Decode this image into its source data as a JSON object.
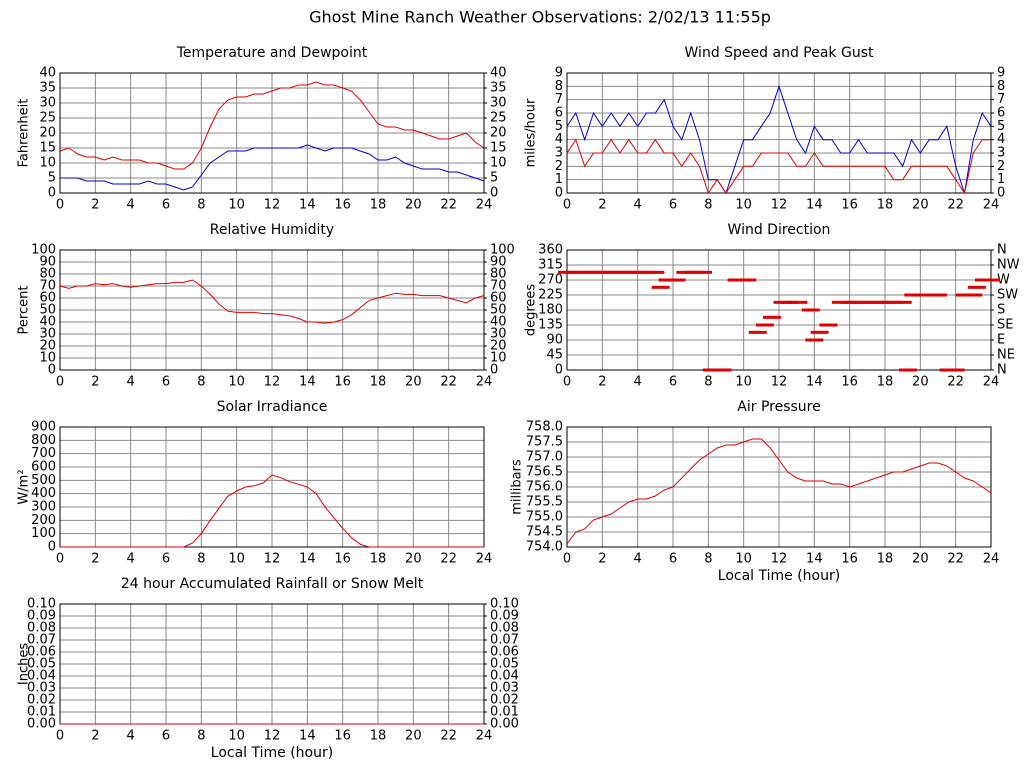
{
  "title": "Ghost Mine Ranch Weather Observations: 2/02/13 11:55p",
  "chart_data": [
    {
      "type": "line",
      "title": "Temperature and Dewpoint",
      "ylabel": "Fahrenheit",
      "grid": true,
      "x": [
        0,
        0.5,
        1,
        1.5,
        2,
        2.5,
        3,
        3.5,
        4,
        4.5,
        5,
        5.5,
        6,
        6.5,
        7,
        7.5,
        8,
        8.5,
        9,
        9.5,
        10,
        10.5,
        11,
        11.5,
        12,
        12.5,
        13,
        13.5,
        14,
        14.5,
        15,
        15.5,
        16,
        16.5,
        17,
        17.5,
        18,
        18.5,
        19,
        19.5,
        20,
        20.5,
        21,
        21.5,
        22,
        22.5,
        23,
        23.5,
        24
      ],
      "series": [
        {
          "color": "#e00000",
          "values": [
            14,
            15,
            13,
            12,
            12,
            11,
            12,
            11,
            11,
            11,
            10,
            10,
            9,
            8,
            8,
            10,
            15,
            22,
            28,
            31,
            32,
            32,
            33,
            33,
            34,
            35,
            35,
            36,
            36,
            37,
            36,
            36,
            35,
            34,
            31,
            27,
            23,
            22,
            22,
            21,
            21,
            20,
            19,
            18,
            18,
            19,
            20,
            17,
            15
          ]
        },
        {
          "color": "#0000d0",
          "values": [
            5,
            5,
            5,
            4,
            4,
            4,
            3,
            3,
            3,
            3,
            4,
            3,
            3,
            2,
            1,
            2,
            6,
            10,
            12,
            14,
            14,
            14,
            15,
            15,
            15,
            15,
            15,
            15,
            16,
            15,
            14,
            15,
            15,
            15,
            14,
            13,
            11,
            11,
            12,
            10,
            9,
            8,
            8,
            8,
            7,
            7,
            6,
            5,
            4
          ]
        }
      ],
      "xlim": [
        0,
        24
      ],
      "xticks": [
        0,
        2,
        4,
        6,
        8,
        10,
        12,
        14,
        16,
        18,
        20,
        22,
        24
      ],
      "ylim": [
        0,
        40
      ],
      "yticks": [
        0,
        5,
        10,
        15,
        20,
        25,
        30,
        35,
        40
      ],
      "y2lim": [
        0,
        40
      ],
      "y2ticks": [
        0,
        5,
        10,
        15,
        20,
        25,
        30,
        35,
        40
      ]
    },
    {
      "type": "line",
      "title": "Wind Speed and Peak Gust",
      "ylabel": "miles/hour",
      "grid": true,
      "x": [
        0,
        0.5,
        1,
        1.5,
        2,
        2.5,
        3,
        3.5,
        4,
        4.5,
        5,
        5.5,
        6,
        6.5,
        7,
        7.5,
        8,
        8.5,
        9,
        9.5,
        10,
        10.5,
        11,
        11.5,
        12,
        12.5,
        13,
        13.5,
        14,
        14.5,
        15,
        15.5,
        16,
        16.5,
        17,
        17.5,
        18,
        18.5,
        19,
        19.5,
        20,
        20.5,
        21,
        21.5,
        22,
        22.5,
        23,
        23.5,
        24
      ],
      "series": [
        {
          "color": "#0000d0",
          "values": [
            5,
            6,
            4,
            6,
            5,
            6,
            5,
            6,
            5,
            6,
            6,
            7,
            5,
            4,
            6,
            4,
            1,
            1,
            0,
            2,
            4,
            4,
            5,
            6,
            8,
            6,
            4,
            3,
            5,
            4,
            4,
            3,
            3,
            4,
            3,
            3,
            3,
            3,
            2,
            4,
            3,
            4,
            4,
            5,
            2,
            0,
            4,
            6,
            5
          ]
        },
        {
          "color": "#e00000",
          "values": [
            3,
            4,
            2,
            3,
            3,
            4,
            3,
            4,
            3,
            3,
            4,
            3,
            3,
            2,
            3,
            2,
            0,
            1,
            0,
            1,
            2,
            2,
            3,
            3,
            3,
            3,
            2,
            2,
            3,
            2,
            2,
            2,
            2,
            2,
            2,
            2,
            2,
            1,
            1,
            2,
            2,
            2,
            2,
            2,
            1,
            0,
            3,
            4,
            4
          ]
        }
      ],
      "xlim": [
        0,
        24
      ],
      "xticks": [
        0,
        2,
        4,
        6,
        8,
        10,
        12,
        14,
        16,
        18,
        20,
        22,
        24
      ],
      "ylim": [
        0,
        9
      ],
      "yticks": [
        0,
        1,
        2,
        3,
        4,
        5,
        6,
        7,
        8,
        9
      ],
      "y2lim": [
        0,
        9
      ],
      "y2ticks": [
        0,
        1,
        2,
        3,
        4,
        5,
        6,
        7,
        8,
        9
      ]
    },
    {
      "type": "line",
      "title": "Relative Humidity",
      "ylabel": "Percent",
      "grid": true,
      "x": [
        0,
        0.5,
        1,
        1.5,
        2,
        2.5,
        3,
        3.5,
        4,
        4.5,
        5,
        5.5,
        6,
        6.5,
        7,
        7.5,
        8,
        8.5,
        9,
        9.5,
        10,
        10.5,
        11,
        11.5,
        12,
        12.5,
        13,
        13.5,
        14,
        14.5,
        15,
        15.5,
        16,
        16.5,
        17,
        17.5,
        18,
        18.5,
        19,
        19.5,
        20,
        20.5,
        21,
        21.5,
        22,
        22.5,
        23,
        23.5,
        24
      ],
      "series": [
        {
          "color": "#e00000",
          "values": [
            70,
            68,
            70,
            70,
            72,
            71,
            72,
            70,
            69,
            70,
            71,
            72,
            72,
            73,
            73,
            75,
            70,
            63,
            55,
            49,
            48,
            48,
            48,
            47,
            47,
            46,
            45,
            43,
            40,
            40,
            39,
            40,
            42,
            46,
            52,
            58,
            60,
            62,
            64,
            63,
            63,
            62,
            62,
            62,
            60,
            58,
            56,
            60,
            62
          ]
        }
      ],
      "xlim": [
        0,
        24
      ],
      "xticks": [
        0,
        2,
        4,
        6,
        8,
        10,
        12,
        14,
        16,
        18,
        20,
        22,
        24
      ],
      "ylim": [
        0,
        100
      ],
      "yticks": [
        0,
        10,
        20,
        30,
        40,
        50,
        60,
        70,
        80,
        90,
        100
      ],
      "y2lim": [
        0,
        100
      ],
      "y2ticks": [
        0,
        10,
        20,
        30,
        40,
        50,
        60,
        70,
        80,
        90,
        100
      ]
    },
    {
      "type": "scatter",
      "title": "Wind Direction",
      "ylabel": "degrees",
      "grid": true,
      "x": [
        0,
        0.5,
        1,
        1.5,
        2,
        2.5,
        3,
        3.5,
        4,
        4.5,
        5,
        5.3,
        5.7,
        6.2,
        6.7,
        7.2,
        7.7,
        8.2,
        8.5,
        8.8,
        9.6,
        10.2,
        10.8,
        11.2,
        11.6,
        12.2,
        12.6,
        13.1,
        13.8,
        14,
        14.3,
        14.8,
        15.5,
        16,
        16.5,
        17,
        17.5,
        18,
        18.5,
        19,
        19.3,
        19.6,
        20,
        20.5,
        21,
        21.6,
        22,
        22.5,
        23,
        23.2,
        23.6,
        24
      ],
      "series": [
        {
          "color": "#e00000",
          "values": [
            293,
            293,
            293,
            293,
            293,
            293,
            293,
            293,
            293,
            293,
            293,
            248,
            270,
            270,
            293,
            293,
            293,
            0,
            0,
            0,
            270,
            270,
            113,
            135,
            158,
            203,
            203,
            203,
            180,
            90,
            113,
            135,
            203,
            203,
            203,
            203,
            203,
            203,
            203,
            203,
            0,
            225,
            225,
            225,
            225,
            0,
            0,
            225,
            225,
            248,
            270,
            270
          ]
        }
      ],
      "xlim": [
        0,
        24
      ],
      "xticks": [
        0,
        2,
        4,
        6,
        8,
        10,
        12,
        14,
        16,
        18,
        20,
        22,
        24
      ],
      "ylim": [
        0,
        360
      ],
      "yticks": [
        0,
        45,
        90,
        135,
        180,
        225,
        270,
        315,
        360
      ],
      "y2lim": [
        0,
        360
      ],
      "y2ticks": [
        {
          "value": 0,
          "label": "N"
        },
        {
          "value": 45,
          "label": "NE"
        },
        {
          "value": 90,
          "label": "E"
        },
        {
          "value": 135,
          "label": "SE"
        },
        {
          "value": 180,
          "label": "S"
        },
        {
          "value": 225,
          "label": "SW"
        },
        {
          "value": 270,
          "label": "W"
        },
        {
          "value": 315,
          "label": "NW"
        },
        {
          "value": 360,
          "label": "N"
        }
      ]
    },
    {
      "type": "line",
      "title": "Solar Irradiance",
      "ylabel": "W/m²",
      "grid": true,
      "x": [
        0,
        0.5,
        1,
        1.5,
        2,
        2.5,
        3,
        3.5,
        4,
        4.5,
        5,
        5.5,
        6,
        6.5,
        7,
        7.5,
        8,
        8.5,
        9,
        9.5,
        10,
        10.5,
        11,
        11.5,
        12,
        12.5,
        13,
        13.5,
        14,
        14.5,
        15,
        15.5,
        16,
        16.5,
        17,
        17.5,
        18,
        18.5,
        19,
        19.5,
        20,
        20.5,
        21,
        21.5,
        22,
        22.5,
        23,
        23.5,
        24
      ],
      "series": [
        {
          "color": "#e00000",
          "values": [
            0,
            0,
            0,
            0,
            0,
            0,
            0,
            0,
            0,
            0,
            0,
            0,
            0,
            0,
            0,
            30,
            100,
            200,
            290,
            380,
            420,
            450,
            460,
            480,
            540,
            520,
            490,
            470,
            450,
            400,
            300,
            220,
            140,
            70,
            20,
            0,
            0,
            0,
            0,
            0,
            0,
            0,
            0,
            0,
            0,
            0,
            0,
            0,
            0
          ]
        }
      ],
      "xlim": [
        0,
        24
      ],
      "xticks": [
        0,
        2,
        4,
        6,
        8,
        10,
        12,
        14,
        16,
        18,
        20,
        22,
        24
      ],
      "ylim": [
        0,
        900
      ],
      "yticks": [
        0,
        100,
        200,
        300,
        400,
        500,
        600,
        700,
        800,
        900
      ]
    },
    {
      "type": "line",
      "title": "Air Pressure",
      "ylabel": "millibars",
      "xlabel": "Local Time (hour)",
      "grid": true,
      "x": [
        0,
        0.5,
        1,
        1.5,
        2,
        2.5,
        3,
        3.5,
        4,
        4.5,
        5,
        5.5,
        6,
        6.5,
        7,
        7.5,
        8,
        8.5,
        9,
        9.5,
        10,
        10.5,
        11,
        11.5,
        12,
        12.5,
        13,
        13.5,
        14,
        14.5,
        15,
        15.5,
        16,
        16.5,
        17,
        17.5,
        18,
        18.5,
        19,
        19.5,
        20,
        20.5,
        21,
        21.5,
        22,
        22.5,
        23,
        23.5,
        24
      ],
      "series": [
        {
          "color": "#e00000",
          "values": [
            754.1,
            754.5,
            754.6,
            754.9,
            755.0,
            755.1,
            755.3,
            755.5,
            755.6,
            755.6,
            755.7,
            755.9,
            756.0,
            756.3,
            756.6,
            756.9,
            757.1,
            757.3,
            757.4,
            757.4,
            757.5,
            757.6,
            757.6,
            757.3,
            756.9,
            756.5,
            756.3,
            756.2,
            756.2,
            756.2,
            756.1,
            756.1,
            756.0,
            756.1,
            756.2,
            756.3,
            756.4,
            756.5,
            756.5,
            756.6,
            756.7,
            756.8,
            756.8,
            756.7,
            756.5,
            756.3,
            756.2,
            756.0,
            755.8
          ]
        }
      ],
      "xlim": [
        0,
        24
      ],
      "xticks": [
        0,
        2,
        4,
        6,
        8,
        10,
        12,
        14,
        16,
        18,
        20,
        22,
        24
      ],
      "ylim": [
        754,
        758
      ],
      "yticks": [
        {
          "value": 754,
          "label": "754.0"
        },
        754.5,
        {
          "value": 755,
          "label": "755.0"
        },
        755.5,
        {
          "value": 756,
          "label": "756.0"
        },
        756.5,
        {
          "value": 757,
          "label": "757.0"
        },
        757.5,
        {
          "value": 758,
          "label": "758.0"
        }
      ]
    },
    {
      "type": "line",
      "title": "24 hour Accumulated Rainfall or Snow Melt",
      "ylabel": "Inches",
      "xlabel": "Local Time (hour)",
      "grid": true,
      "x": [
        0,
        24
      ],
      "series": [
        {
          "color": "#e00000",
          "values": [
            0,
            0
          ]
        }
      ],
      "xlim": [
        0,
        24
      ],
      "xticks": [
        0,
        2,
        4,
        6,
        8,
        10,
        12,
        14,
        16,
        18,
        20,
        22,
        24
      ],
      "ylim": [
        0,
        0.1
      ],
      "yticks": [
        {
          "value": 0,
          "label": "0.00"
        },
        0.01,
        0.02,
        0.03,
        0.04,
        0.05,
        0.06,
        0.07,
        0.08,
        0.09,
        {
          "value": 0.1,
          "label": "0.10"
        }
      ],
      "y2lim": [
        0,
        0.1
      ],
      "y2ticks": [
        {
          "value": 0,
          "label": "0.00"
        },
        0.01,
        0.02,
        0.03,
        0.04,
        0.05,
        0.06,
        0.07,
        0.08,
        0.09,
        {
          "value": 0.1,
          "label": "0.10"
        }
      ]
    }
  ]
}
